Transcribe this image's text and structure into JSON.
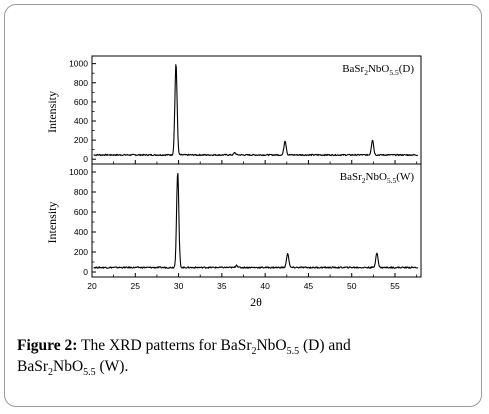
{
  "caption": {
    "label": "Figure 2:",
    "text_1": " The XRD patterns for BaSr",
    "sub_1": "2",
    "text_2": "NbO",
    "sub_2": "5.5",
    "text_3": " (D) and",
    "text_4": "BaSr",
    "sub_3": "2",
    "text_5": "NbO",
    "sub_4": "5.5",
    "text_6": " (W)."
  },
  "chart_data": {
    "type": "line",
    "xlabel": "2θ",
    "xlim": [
      20,
      58
    ],
    "x_ticks": [
      20,
      25,
      30,
      35,
      40,
      45,
      50,
      55
    ],
    "ylim": [
      -50,
      1080
    ],
    "panels": [
      {
        "ylabel": "Intensity",
        "y_ticks": [
          0,
          200,
          400,
          600,
          800,
          1000
        ],
        "legend": {
          "base": "BaSr",
          "sub_a": "2",
          "mid": "NbO",
          "sub_b": "5.5",
          "suffix": "(D)"
        },
        "baseline": 45,
        "peaks": [
          {
            "x": 29.7,
            "y": 1000,
            "width": 0.18
          },
          {
            "x": 36.5,
            "y": 70,
            "width": 0.15
          },
          {
            "x": 42.3,
            "y": 195,
            "width": 0.18
          },
          {
            "x": 52.4,
            "y": 205,
            "width": 0.18
          }
        ]
      },
      {
        "ylabel": "Intensity",
        "y_ticks": [
          0,
          200,
          400,
          600,
          800,
          1000
        ],
        "legend": {
          "base": "BaSr",
          "sub_a": "2",
          "mid": "NbO",
          "sub_b": "5.5",
          "suffix": "(W)"
        },
        "baseline": 45,
        "peaks": [
          {
            "x": 29.9,
            "y": 1000,
            "width": 0.18
          },
          {
            "x": 36.7,
            "y": 70,
            "width": 0.15
          },
          {
            "x": 42.6,
            "y": 190,
            "width": 0.18
          },
          {
            "x": 52.9,
            "y": 195,
            "width": 0.18
          }
        ]
      }
    ]
  }
}
